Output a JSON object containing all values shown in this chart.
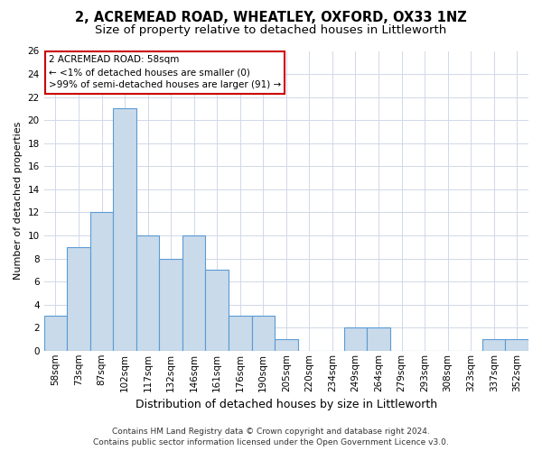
{
  "title": "2, ACREMEAD ROAD, WHEATLEY, OXFORD, OX33 1NZ",
  "subtitle": "Size of property relative to detached houses in Littleworth",
  "xlabel": "Distribution of detached houses by size in Littleworth",
  "ylabel": "Number of detached properties",
  "categories": [
    "58sqm",
    "73sqm",
    "87sqm",
    "102sqm",
    "117sqm",
    "132sqm",
    "146sqm",
    "161sqm",
    "176sqm",
    "190sqm",
    "205sqm",
    "220sqm",
    "234sqm",
    "249sqm",
    "264sqm",
    "279sqm",
    "293sqm",
    "308sqm",
    "323sqm",
    "337sqm",
    "352sqm"
  ],
  "values": [
    3,
    9,
    12,
    21,
    10,
    8,
    10,
    7,
    3,
    3,
    1,
    0,
    0,
    2,
    2,
    0,
    0,
    0,
    0,
    1,
    1
  ],
  "bar_color": "#c9daea",
  "bar_edge_color": "#5b9bd5",
  "ylim": [
    0,
    26
  ],
  "yticks": [
    0,
    2,
    4,
    6,
    8,
    10,
    12,
    14,
    16,
    18,
    20,
    22,
    24,
    26
  ],
  "grid_color": "#d0d8e8",
  "annotation_line1": "2 ACREMEAD ROAD: 58sqm",
  "annotation_line2": "← <1% of detached houses are smaller (0)",
  "annotation_line3": ">99% of semi-detached houses are larger (91) →",
  "annotation_box_color": "#ffffff",
  "annotation_border_color": "#cc0000",
  "footer_line1": "Contains HM Land Registry data © Crown copyright and database right 2024.",
  "footer_line2": "Contains public sector information licensed under the Open Government Licence v3.0.",
  "background_color": "#ffffff",
  "title_fontsize": 10.5,
  "subtitle_fontsize": 9.5,
  "ylabel_fontsize": 8,
  "xlabel_fontsize": 9,
  "tick_fontsize": 7.5,
  "annotation_fontsize": 7.5,
  "footer_fontsize": 6.5
}
